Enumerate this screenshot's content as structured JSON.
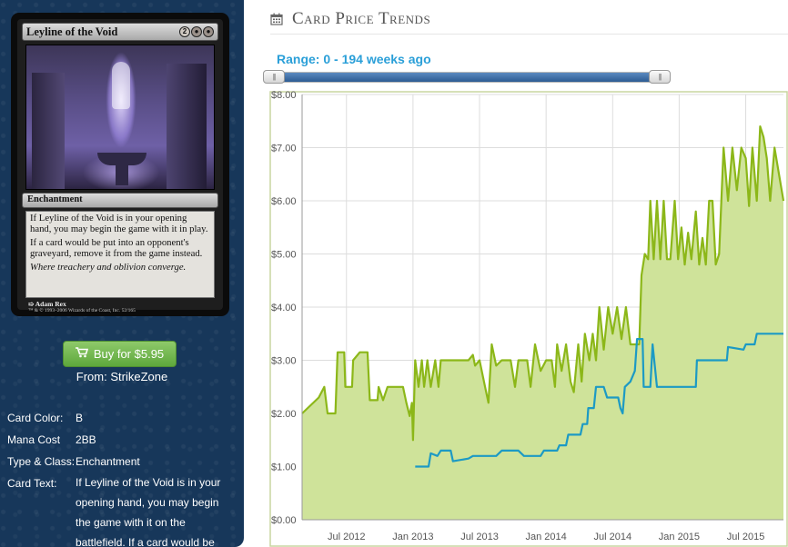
{
  "card": {
    "name": "Leyline of the Void",
    "mana_symbols": [
      "2",
      "B",
      "B"
    ],
    "type_line": "Enchantment",
    "rules_text": [
      "If Leyline of the Void is in your opening hand, you may begin the game with it in play.",
      "If a card would be put into an opponent's graveyard, remove it from the game instead."
    ],
    "flavor_text": "Where treachery and oblivion converge.",
    "artist": "Adam Rex",
    "copyright": "™ & © 1993–2006 Wizards of the Coast, Inc. 52/165"
  },
  "buy": {
    "label": "Buy for $5.95",
    "icon": "shopping-cart-icon",
    "from": "From: StrikeZone"
  },
  "details": {
    "color_label": "Card Color:",
    "color_value": "B",
    "mana_label": "Mana Cost",
    "mana_value": "2BB",
    "type_label": "Type & Class:",
    "type_value": "Enchantment",
    "text_label": "Card Text:",
    "text_value": "If Leyline of the Void is in your opening hand, you may begin the game with it on the battlefield. If a card would be"
  },
  "header": {
    "title": "Card Price Trends",
    "icon": "calendar-icon"
  },
  "range": {
    "label": "Range: 0 - 194 weeks ago",
    "start_weeks": 0,
    "end_weeks": 194
  },
  "colors": {
    "sidebar_bg": "#17375a",
    "avg_line": "#8cb719",
    "avg_fill": "#cfe39a",
    "foil_line": "#1c9ac4",
    "range_text": "#2a9fd8",
    "buy_button": "#6db347"
  },
  "chart_data": {
    "type": "line",
    "ylim": [
      0,
      8
    ],
    "yticks": [
      "$0.00",
      "$1.00",
      "$2.00",
      "$3.00",
      "$4.00",
      "$5.00",
      "$6.00",
      "$7.00",
      "$8.00"
    ],
    "xticks": [
      "Jul 2012",
      "Jan 2013",
      "Jul 2013",
      "Jan 2014",
      "Jul 2014",
      "Jan 2015",
      "Jul 2015"
    ],
    "x_unit": "month index from Jan 2012",
    "xlim": [
      2,
      45.4
    ],
    "grid": true,
    "series": [
      {
        "style": "area",
        "color": "#8cb719",
        "points": [
          [
            2.0,
            2.0
          ],
          [
            3.5,
            2.3
          ],
          [
            4.0,
            2.5
          ],
          [
            4.3,
            2.0
          ],
          [
            5.0,
            2.0
          ],
          [
            5.2,
            3.15
          ],
          [
            5.8,
            3.15
          ],
          [
            5.9,
            2.5
          ],
          [
            6.5,
            2.5
          ],
          [
            6.6,
            3.0
          ],
          [
            7.2,
            3.15
          ],
          [
            7.9,
            3.15
          ],
          [
            8.1,
            2.25
          ],
          [
            8.8,
            2.25
          ],
          [
            8.9,
            2.5
          ],
          [
            9.3,
            2.25
          ],
          [
            9.7,
            2.5
          ],
          [
            10.5,
            2.5
          ],
          [
            11.1,
            2.5
          ],
          [
            11.4,
            2.2
          ],
          [
            11.7,
            1.95
          ],
          [
            11.9,
            2.2
          ],
          [
            12.0,
            1.5
          ],
          [
            12.2,
            3.0
          ],
          [
            12.5,
            2.5
          ],
          [
            12.8,
            3.0
          ],
          [
            13.0,
            2.5
          ],
          [
            13.3,
            3.0
          ],
          [
            13.6,
            2.5
          ],
          [
            14.0,
            3.0
          ],
          [
            14.3,
            2.5
          ],
          [
            14.5,
            3.0
          ],
          [
            16.0,
            3.0
          ],
          [
            17.0,
            3.0
          ],
          [
            17.4,
            3.1
          ],
          [
            17.6,
            2.9
          ],
          [
            18.0,
            3.0
          ],
          [
            18.5,
            2.5
          ],
          [
            18.8,
            2.2
          ],
          [
            19.1,
            3.3
          ],
          [
            19.5,
            2.9
          ],
          [
            20.0,
            3.0
          ],
          [
            20.8,
            3.0
          ],
          [
            21.2,
            2.5
          ],
          [
            21.5,
            3.0
          ],
          [
            22.3,
            3.0
          ],
          [
            22.6,
            2.5
          ],
          [
            23.0,
            3.3
          ],
          [
            23.5,
            2.8
          ],
          [
            24.0,
            3.0
          ],
          [
            24.5,
            3.0
          ],
          [
            24.8,
            2.5
          ],
          [
            25.0,
            3.3
          ],
          [
            25.4,
            2.8
          ],
          [
            25.8,
            3.3
          ],
          [
            26.2,
            2.6
          ],
          [
            26.5,
            2.4
          ],
          [
            26.9,
            3.3
          ],
          [
            27.2,
            2.6
          ],
          [
            27.5,
            3.5
          ],
          [
            27.9,
            3.0
          ],
          [
            28.2,
            3.5
          ],
          [
            28.5,
            3.0
          ],
          [
            28.8,
            4.0
          ],
          [
            29.2,
            3.2
          ],
          [
            29.6,
            4.0
          ],
          [
            30.0,
            3.5
          ],
          [
            30.4,
            4.0
          ],
          [
            30.8,
            3.4
          ],
          [
            31.2,
            4.0
          ],
          [
            31.6,
            3.3
          ],
          [
            32.0,
            3.3
          ],
          [
            32.4,
            3.3
          ],
          [
            32.6,
            4.6
          ],
          [
            32.9,
            5.0
          ],
          [
            33.2,
            4.9
          ],
          [
            33.4,
            6.0
          ],
          [
            33.7,
            4.9
          ],
          [
            34.0,
            6.0
          ],
          [
            34.3,
            4.9
          ],
          [
            34.6,
            6.0
          ],
          [
            34.9,
            4.9
          ],
          [
            35.2,
            4.9
          ],
          [
            35.6,
            6.0
          ],
          [
            35.9,
            4.9
          ],
          [
            36.2,
            5.5
          ],
          [
            36.5,
            4.8
          ],
          [
            36.8,
            5.4
          ],
          [
            37.1,
            4.9
          ],
          [
            37.5,
            5.8
          ],
          [
            37.8,
            4.8
          ],
          [
            38.1,
            5.3
          ],
          [
            38.4,
            4.8
          ],
          [
            38.7,
            6.0
          ],
          [
            39.0,
            6.0
          ],
          [
            39.3,
            4.8
          ],
          [
            39.6,
            5.0
          ],
          [
            40.0,
            7.0
          ],
          [
            40.4,
            6.0
          ],
          [
            40.8,
            7.0
          ],
          [
            41.2,
            6.2
          ],
          [
            41.6,
            7.0
          ],
          [
            42.0,
            6.8
          ],
          [
            42.3,
            5.9
          ],
          [
            42.6,
            7.0
          ],
          [
            43.0,
            6.0
          ],
          [
            43.3,
            7.4
          ],
          [
            43.6,
            7.2
          ],
          [
            43.9,
            6.8
          ],
          [
            44.2,
            6.0
          ],
          [
            44.6,
            7.0
          ],
          [
            45.0,
            6.5
          ],
          [
            45.4,
            6.0
          ]
        ]
      },
      {
        "style": "line",
        "color": "#1c9ac4",
        "points": [
          [
            12.2,
            1.0
          ],
          [
            13.4,
            1.0
          ],
          [
            13.6,
            1.25
          ],
          [
            14.2,
            1.2
          ],
          [
            14.5,
            1.3
          ],
          [
            15.4,
            1.3
          ],
          [
            15.6,
            1.1
          ],
          [
            17.0,
            1.15
          ],
          [
            17.4,
            1.2
          ],
          [
            19.5,
            1.2
          ],
          [
            20.0,
            1.3
          ],
          [
            21.5,
            1.3
          ],
          [
            22.0,
            1.2
          ],
          [
            23.5,
            1.2
          ],
          [
            23.8,
            1.3
          ],
          [
            25.0,
            1.3
          ],
          [
            25.2,
            1.4
          ],
          [
            25.8,
            1.4
          ],
          [
            26.0,
            1.6
          ],
          [
            27.1,
            1.6
          ],
          [
            27.3,
            1.8
          ],
          [
            27.7,
            1.8
          ],
          [
            27.8,
            2.1
          ],
          [
            28.3,
            2.1
          ],
          [
            28.5,
            2.5
          ],
          [
            29.2,
            2.5
          ],
          [
            29.5,
            2.3
          ],
          [
            30.5,
            2.3
          ],
          [
            30.7,
            2.1
          ],
          [
            30.9,
            2.0
          ],
          [
            31.1,
            2.5
          ],
          [
            31.6,
            2.6
          ],
          [
            32.0,
            2.8
          ],
          [
            32.2,
            3.4
          ],
          [
            32.7,
            3.4
          ],
          [
            32.8,
            2.5
          ],
          [
            33.4,
            2.5
          ],
          [
            33.6,
            3.3
          ],
          [
            34.0,
            2.5
          ],
          [
            36.0,
            2.5
          ],
          [
            36.3,
            2.5
          ],
          [
            36.6,
            2.5
          ],
          [
            37.5,
            2.5
          ],
          [
            37.6,
            3.0
          ],
          [
            40.3,
            3.0
          ],
          [
            40.4,
            3.25
          ],
          [
            41.8,
            3.2
          ],
          [
            42.0,
            3.3
          ],
          [
            42.8,
            3.3
          ],
          [
            43.0,
            3.5
          ],
          [
            45.4,
            3.5
          ]
        ]
      }
    ]
  }
}
